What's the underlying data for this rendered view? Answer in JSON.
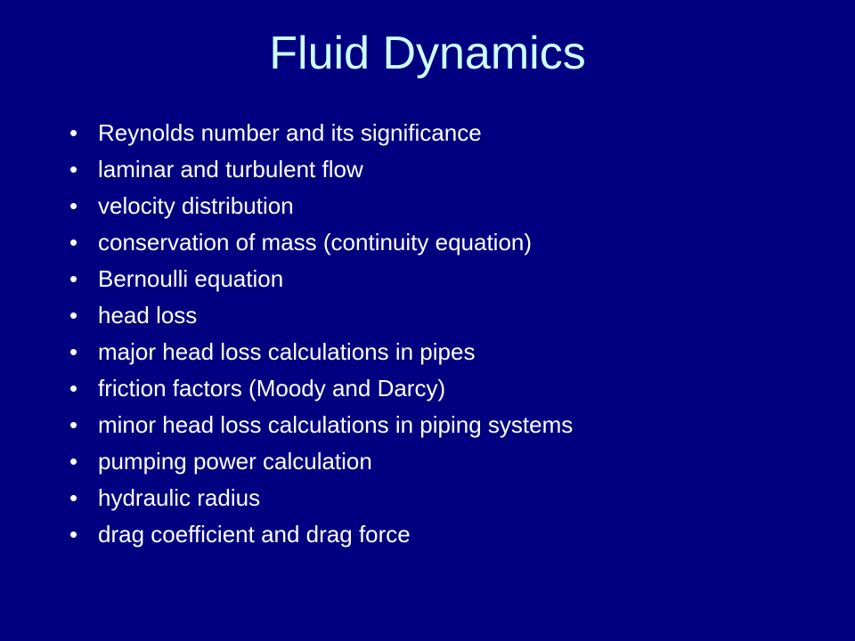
{
  "slide": {
    "title": "Fluid Dynamics",
    "title_color": "#ccffff",
    "title_fontsize": 52,
    "background_color": "#000080",
    "bullet_color": "#ffffff",
    "bullet_fontsize": 26,
    "bullets": [
      "Reynolds number and its significance",
      "laminar and turbulent flow",
      "velocity distribution",
      "conservation of mass (continuity equation)",
      "Bernoulli equation",
      "head loss",
      "major head loss calculations in pipes",
      "friction factors (Moody and Darcy)",
      "minor head loss calculations in piping systems",
      "pumping power calculation",
      "hydraulic radius",
      "drag coefficient and drag force"
    ]
  }
}
